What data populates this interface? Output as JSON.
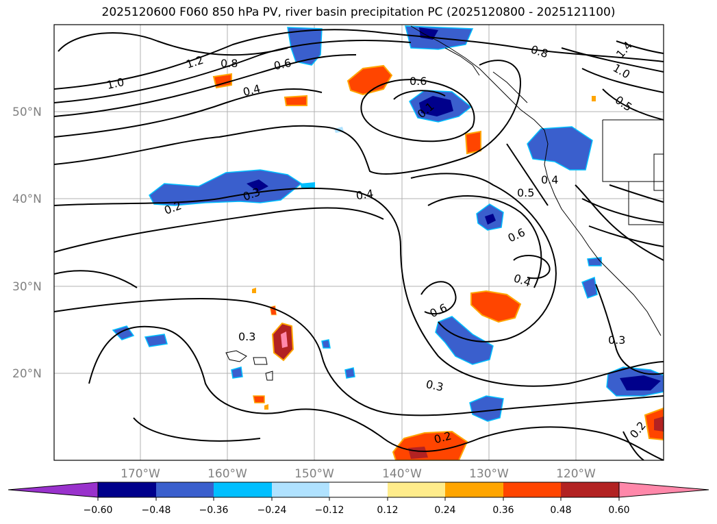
{
  "title": "2025120600 F060 850 hPa PV, river basin precipitation PC (2025120800 - 2025121100)",
  "map": {
    "lat_labels": [
      "50°N",
      "40°N",
      "30°N",
      "20°N"
    ],
    "lon_labels": [
      "170°W",
      "160°W",
      "150°W",
      "140°W",
      "130°W",
      "120°W"
    ],
    "contour_labels": [
      "1.2",
      "0.8",
      "1.0",
      "0.6",
      "0.4",
      "0.6",
      "0.8",
      "1.4",
      "1.0",
      "0.5",
      "0.1",
      "0.2",
      "0.3",
      "0.4",
      "0.5",
      "0.4",
      "0.6",
      "0.4",
      "0.6",
      "0.3",
      "0.3",
      "0.3",
      "0.2",
      "0.2"
    ]
  },
  "colorbar": {
    "ticks": [
      "−0.60",
      "−0.48",
      "−0.36",
      "−0.24",
      "−0.12",
      "0.12",
      "0.24",
      "0.36",
      "0.48",
      "0.60"
    ],
    "colors": [
      "#9932cc",
      "#00008b",
      "#3a5fcd",
      "#00bfff",
      "#b0e2ff",
      "#ffffff",
      "#ffec8b",
      "#ffa500",
      "#ff4500",
      "#b22222",
      "#ff88aa"
    ]
  }
}
